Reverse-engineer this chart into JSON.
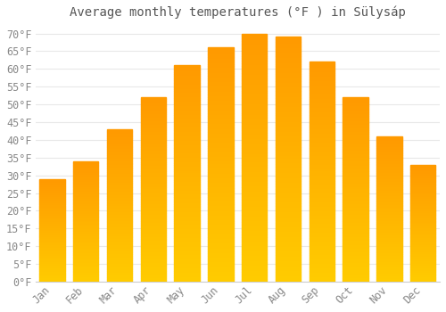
{
  "title": "Average monthly temperatures (°F ) in Sülysáp",
  "months": [
    "Jan",
    "Feb",
    "Mar",
    "Apr",
    "May",
    "Jun",
    "Jul",
    "Aug",
    "Sep",
    "Oct",
    "Nov",
    "Dec"
  ],
  "values": [
    29,
    34,
    43,
    52,
    61,
    66,
    70,
    69,
    62,
    52,
    41,
    33
  ],
  "bar_color_top": "#FFA500",
  "bar_color_bottom": "#FFB733",
  "ylim": [
    0,
    72
  ],
  "ytick_max": 70,
  "ytick_step": 5,
  "background_color": "#ffffff",
  "grid_color": "#e8e8e8",
  "title_fontsize": 10,
  "tick_fontsize": 8.5,
  "bar_width": 0.75
}
